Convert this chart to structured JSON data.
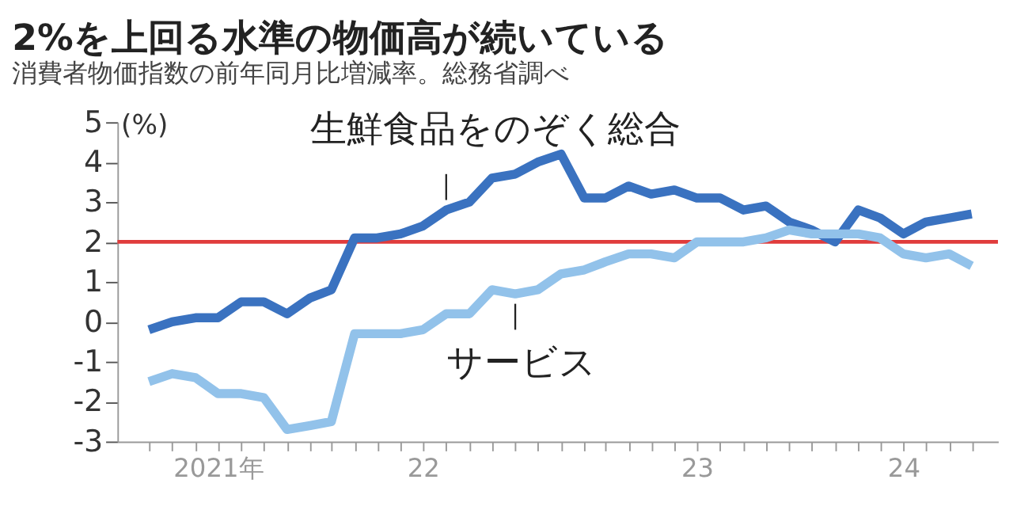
{
  "chart_data": {
    "type": "line",
    "title": "2%を上回る水準の物価高が続いている",
    "subtitle": "消費者物価指数の前年同月比増減率。総務省調べ",
    "ylabel": "(%)",
    "x": [
      "2021-07",
      "2021-08",
      "2021-09",
      "2021-10",
      "2021-11",
      "2021-12",
      "2022-01",
      "2022-02",
      "2022-03",
      "2022-04",
      "2022-05",
      "2022-06",
      "2022-07",
      "2022-08",
      "2022-09",
      "2022-10",
      "2022-11",
      "2022-12",
      "2023-01",
      "2023-02",
      "2023-03",
      "2023-04",
      "2023-05",
      "2023-06",
      "2023-07",
      "2023-08",
      "2023-09",
      "2023-10",
      "2023-11",
      "2023-12",
      "2024-01",
      "2024-02",
      "2024-03",
      "2024-04",
      "2024-05",
      "2024-06",
      "2024-07"
    ],
    "series": [
      {
        "name": "生鮮食品をのぞく総合",
        "color": "#3a72c0",
        "values": [
          -0.2,
          0.0,
          0.1,
          0.1,
          0.5,
          0.5,
          0.2,
          0.6,
          0.8,
          2.1,
          2.1,
          2.2,
          2.4,
          2.8,
          3.0,
          3.6,
          3.7,
          4.0,
          4.2,
          3.1,
          3.1,
          3.4,
          3.2,
          3.3,
          3.1,
          3.1,
          2.8,
          2.9,
          2.5,
          2.3,
          2.0,
          2.8,
          2.6,
          2.2,
          2.5,
          2.6,
          2.7
        ]
      },
      {
        "name": "サービス",
        "color": "#92c2ea",
        "values": [
          -1.5,
          -1.3,
          -1.4,
          -1.8,
          -1.8,
          -1.9,
          -2.7,
          -2.6,
          -2.5,
          -0.3,
          -0.3,
          -0.3,
          -0.2,
          0.2,
          0.2,
          0.8,
          0.7,
          0.8,
          1.2,
          1.3,
          1.5,
          1.7,
          1.7,
          1.6,
          2.0,
          2.0,
          2.0,
          2.1,
          2.3,
          2.2,
          2.2,
          2.2,
          2.1,
          1.7,
          1.6,
          1.7,
          1.4
        ]
      }
    ],
    "ref_lines": [
      {
        "axis": "y",
        "value": 2,
        "color": "#e03c3c"
      }
    ],
    "xlim": [
      "2021-05-20",
      "2024-08-05"
    ],
    "xticks": [
      {
        "value": "2021-07",
        "label": null
      },
      {
        "value": "2021-08",
        "label": null
      },
      {
        "value": "2021-09",
        "label": null
      },
      {
        "value": "2021-10",
        "label": "2021年"
      },
      {
        "value": "2021-11",
        "label": null
      },
      {
        "value": "2021-12",
        "label": null
      },
      {
        "value": "2022-01",
        "label": null
      },
      {
        "value": "2022-02",
        "label": null
      },
      {
        "value": "2022-03",
        "label": null
      },
      {
        "value": "2022-04",
        "label": null
      },
      {
        "value": "2022-05",
        "label": null
      },
      {
        "value": "2022-06",
        "label": null
      },
      {
        "value": "2022-07",
        "label": "22"
      },
      {
        "value": "2022-08",
        "label": null
      },
      {
        "value": "2022-09",
        "label": null
      },
      {
        "value": "2022-10",
        "label": null
      },
      {
        "value": "2022-11",
        "label": null
      },
      {
        "value": "2022-12",
        "label": null
      },
      {
        "value": "2023-01",
        "label": null
      },
      {
        "value": "2023-02",
        "label": null
      },
      {
        "value": "2023-03",
        "label": null
      },
      {
        "value": "2023-04",
        "label": null
      },
      {
        "value": "2023-05",
        "label": null
      },
      {
        "value": "2023-06",
        "label": null
      },
      {
        "value": "2023-07",
        "label": "23"
      },
      {
        "value": "2023-08",
        "label": null
      },
      {
        "value": "2023-09",
        "label": null
      },
      {
        "value": "2023-10",
        "label": null
      },
      {
        "value": "2023-11",
        "label": null
      },
      {
        "value": "2023-12",
        "label": null
      },
      {
        "value": "2024-01",
        "label": null
      },
      {
        "value": "2024-02",
        "label": null
      },
      {
        "value": "2024-03",
        "label": null
      },
      {
        "value": "2024-04",
        "label": "24"
      },
      {
        "value": "2024-05",
        "label": null
      },
      {
        "value": "2024-06",
        "label": null
      },
      {
        "value": "2024-07",
        "label": null
      }
    ],
    "ylim": [
      -3,
      5
    ],
    "yticks": [
      -3,
      -2,
      -1,
      0,
      1,
      2,
      3,
      4,
      5
    ],
    "grid": false
  }
}
